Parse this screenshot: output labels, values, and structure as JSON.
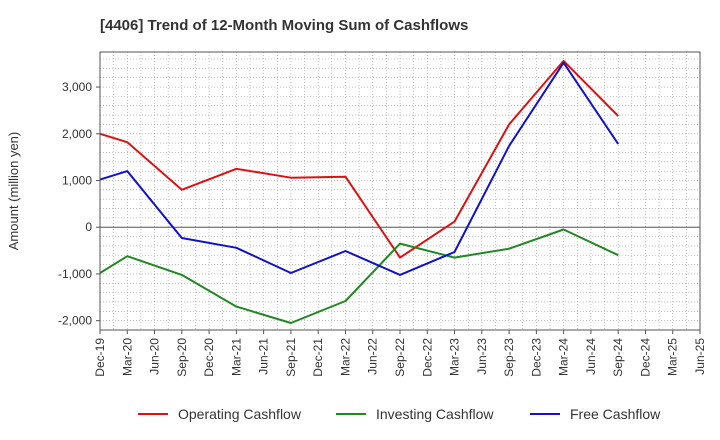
{
  "chart_data": {
    "type": "line",
    "title": "[4406]  Trend of 12-Month Moving Sum of Cashflows",
    "xlabel": "",
    "ylabel": "Amount (million yen)",
    "ylim": [
      -2200,
      3750
    ],
    "yticks": [
      -2000,
      -1000,
      0,
      1000,
      2000,
      3000
    ],
    "ytick_labels": [
      "-2,000",
      "-1,000",
      "0",
      "1,000",
      "2,000",
      "3,000"
    ],
    "categories": [
      "Dec-19",
      "Mar-20",
      "Jun-20",
      "Sep-20",
      "Dec-20",
      "Mar-21",
      "Jun-21",
      "Sep-21",
      "Dec-21",
      "Mar-22",
      "Jun-22",
      "Sep-22",
      "Dec-22",
      "Mar-23",
      "Jun-23",
      "Sep-23",
      "Dec-23",
      "Mar-24",
      "Jun-24",
      "Sep-24",
      "Dec-24",
      "Mar-25",
      "Jun-25"
    ],
    "grid": true,
    "legend_position": "bottom",
    "series": [
      {
        "name": "Operating Cashflow",
        "color": "#dd1111",
        "values": [
          2000,
          1820,
          null,
          800,
          null,
          1250,
          null,
          1060,
          null,
          1080,
          null,
          -650,
          null,
          120,
          null,
          2200,
          null,
          3560,
          null,
          2380,
          null,
          null,
          null
        ]
      },
      {
        "name": "Investing Cashflow",
        "color": "#228822",
        "values": [
          -980,
          -620,
          null,
          -1020,
          null,
          -1700,
          null,
          -2050,
          null,
          -1580,
          null,
          -350,
          null,
          -650,
          null,
          -460,
          null,
          -50,
          null,
          -600,
          null,
          null,
          null
        ]
      },
      {
        "name": "Free Cashflow",
        "color": "#1111cc",
        "values": [
          1020,
          1200,
          null,
          -230,
          null,
          -440,
          null,
          -980,
          null,
          -510,
          null,
          -1020,
          null,
          -530,
          null,
          1740,
          null,
          3520,
          null,
          1780,
          null,
          null,
          null
        ]
      }
    ]
  }
}
